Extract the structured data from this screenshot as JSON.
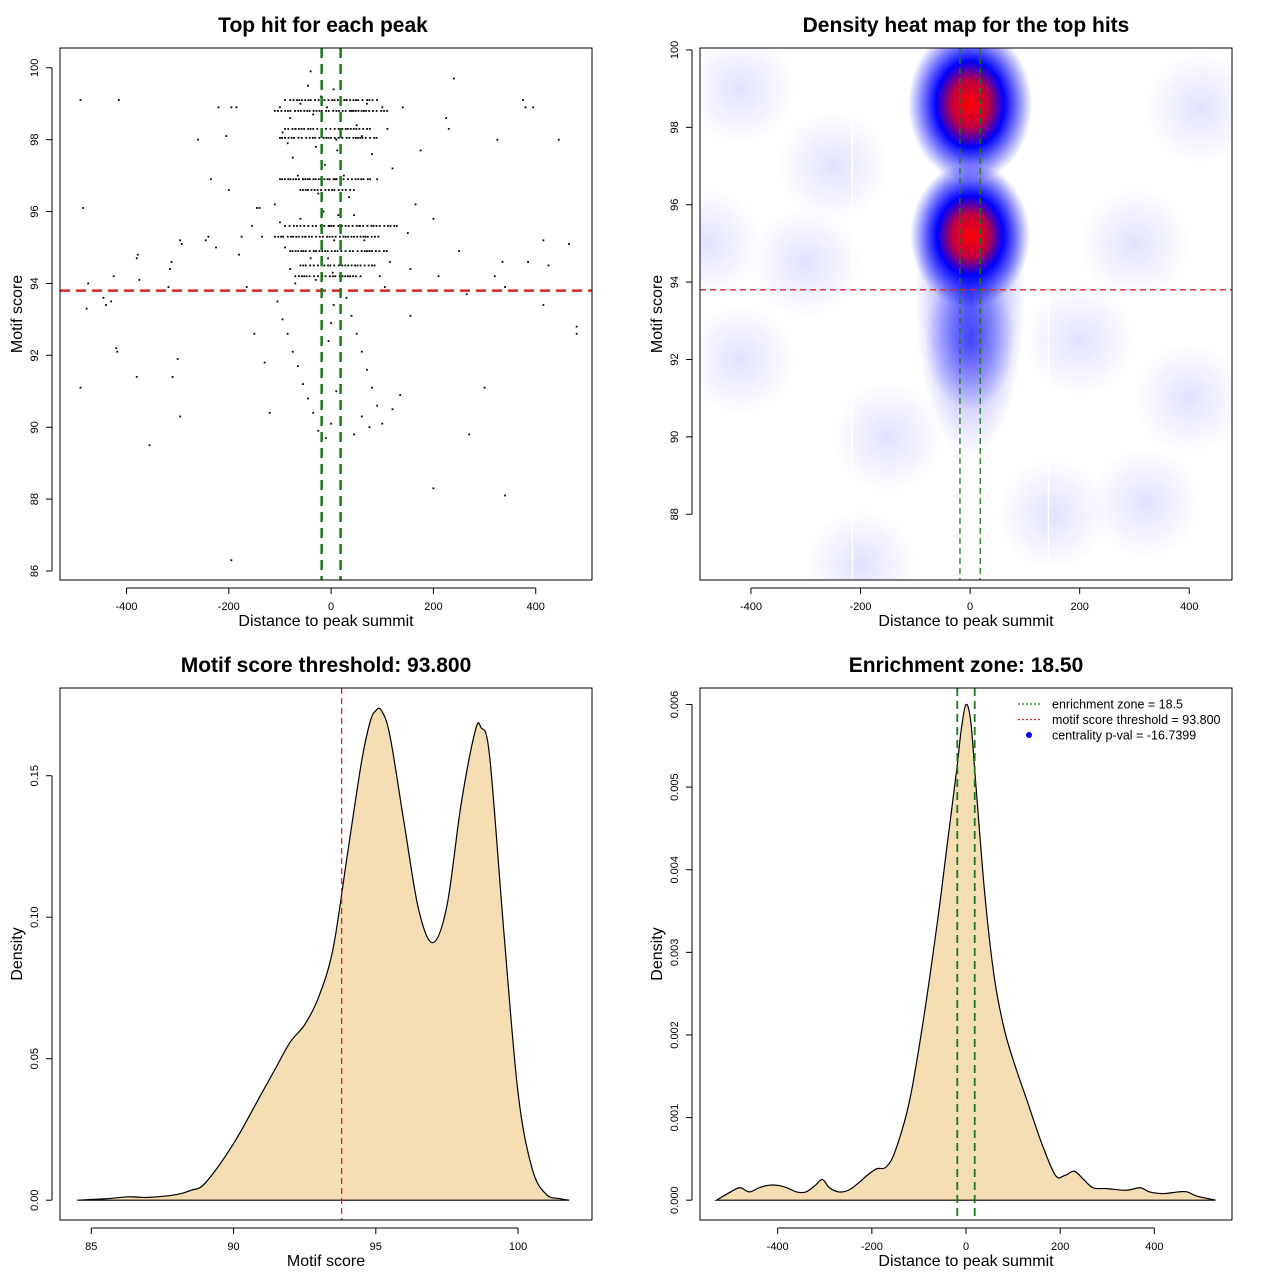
{
  "chart_data": [
    {
      "id": "top_hits",
      "type": "scatter",
      "title": "Top hit for each peak",
      "xlabel": "Distance to peak summit",
      "ylabel": "Motif score",
      "xlim": [
        -530,
        510
      ],
      "ylim": [
        85.75,
        100.55
      ],
      "xticks": [
        -400,
        -200,
        0,
        200,
        400
      ],
      "yticks": [
        86,
        88,
        90,
        92,
        94,
        96,
        98,
        100
      ],
      "hline": {
        "y": 93.8,
        "color": "#d62728",
        "label": "motif score threshold"
      },
      "vlines": [
        {
          "x": -18.5,
          "color": "#1a7a1a"
        },
        {
          "x": 18.5,
          "color": "#1a7a1a"
        }
      ],
      "points": [
        [
          -490,
          99.1
        ],
        [
          -415,
          99.1
        ],
        [
          -485,
          96.1
        ],
        [
          -475,
          94.0
        ],
        [
          -478,
          93.3
        ],
        [
          -465,
          93.8
        ],
        [
          -490,
          91.1
        ],
        [
          -445,
          93.6
        ],
        [
          -430,
          93.5
        ],
        [
          -425,
          94.2
        ],
        [
          -440,
          93.4
        ],
        [
          -420,
          92.2
        ],
        [
          -418,
          92.1
        ],
        [
          -380,
          94.7
        ],
        [
          -378,
          94.8
        ],
        [
          -375,
          94.1
        ],
        [
          -380,
          91.4
        ],
        [
          -355,
          89.5
        ],
        [
          -315,
          94.4
        ],
        [
          -312,
          94.6
        ],
        [
          -318,
          93.9
        ],
        [
          -310,
          91.4
        ],
        [
          -300,
          91.9
        ],
        [
          -295,
          90.3
        ],
        [
          -295,
          95.2
        ],
        [
          -292,
          95.1
        ],
        [
          -260,
          98.0
        ],
        [
          -245,
          95.2
        ],
        [
          -240,
          95.3
        ],
        [
          -235,
          96.9
        ],
        [
          -225,
          95.0
        ],
        [
          -220,
          98.9
        ],
        [
          -205,
          98.1
        ],
        [
          -200,
          96.6
        ],
        [
          -195,
          98.9
        ],
        [
          -185,
          98.9
        ],
        [
          -180,
          94.8
        ],
        [
          -175,
          95.3
        ],
        [
          -165,
          93.9
        ],
        [
          -155,
          95.6
        ],
        [
          -150,
          92.6
        ],
        [
          -145,
          96.1
        ],
        [
          -140,
          96.1
        ],
        [
          -135,
          95.3
        ],
        [
          -130,
          91.8
        ],
        [
          -120,
          90.4
        ],
        [
          -195,
          86.3
        ],
        [
          140,
          98.9
        ],
        [
          150,
          95.4
        ],
        [
          155,
          94.4
        ],
        [
          165,
          96.2
        ],
        [
          175,
          97.7
        ],
        [
          190,
          93.8
        ],
        [
          200,
          95.8
        ],
        [
          210,
          94.2
        ],
        [
          225,
          98.6
        ],
        [
          230,
          98.3
        ],
        [
          240,
          99.7
        ],
        [
          250,
          94.9
        ],
        [
          265,
          93.7
        ],
        [
          270,
          89.8
        ],
        [
          300,
          91.1
        ],
        [
          320,
          94.2
        ],
        [
          325,
          98.0
        ],
        [
          335,
          94.6
        ],
        [
          340,
          93.9
        ],
        [
          375,
          99.1
        ],
        [
          380,
          98.9
        ],
        [
          385,
          94.6
        ],
        [
          395,
          98.9
        ],
        [
          415,
          93.4
        ],
        [
          415,
          95.2
        ],
        [
          425,
          94.5
        ],
        [
          445,
          98.0
        ],
        [
          465,
          95.1
        ],
        [
          480,
          92.8
        ],
        [
          480,
          92.6
        ],
        [
          200,
          88.3
        ],
        [
          340,
          88.1
        ],
        [
          155,
          93.1
        ],
        [
          120,
          90.5
        ],
        [
          135,
          90.9
        ],
        [
          -100,
          98.9
        ],
        [
          -90,
          99.1
        ],
        [
          -80,
          98.6
        ],
        [
          -70,
          98.3
        ],
        [
          -60,
          99.0
        ],
        [
          -95,
          98.2
        ],
        [
          -85,
          97.9
        ],
        [
          -75,
          97.5
        ],
        [
          -65,
          97.0
        ],
        [
          -55,
          96.9
        ],
        [
          -45,
          99.5
        ],
        [
          -40,
          99.9
        ],
        [
          -35,
          98.7
        ],
        [
          -30,
          97.8
        ],
        [
          -25,
          96.5
        ],
        [
          -20,
          99.2
        ],
        [
          30,
          99.1
        ],
        [
          40,
          98.8
        ],
        [
          50,
          98.4
        ],
        [
          60,
          98.1
        ],
        [
          70,
          99.0
        ],
        [
          80,
          97.6
        ],
        [
          90,
          96.9
        ],
        [
          100,
          98.9
        ],
        [
          110,
          98.3
        ],
        [
          120,
          97.2
        ],
        [
          25,
          97.0
        ],
        [
          35,
          96.4
        ],
        [
          45,
          95.9
        ],
        [
          55,
          95.6
        ],
        [
          65,
          95.2
        ],
        [
          75,
          94.9
        ],
        [
          85,
          94.5
        ],
        [
          95,
          94.2
        ],
        [
          105,
          93.9
        ],
        [
          115,
          94.6
        ],
        [
          -110,
          96.2
        ],
        [
          -100,
          95.7
        ],
        [
          -90,
          95.0
        ],
        [
          -80,
          94.4
        ],
        [
          -70,
          94.0
        ],
        [
          -60,
          95.8
        ],
        [
          -50,
          95.3
        ],
        [
          -40,
          94.7
        ],
        [
          -30,
          94.1
        ],
        [
          -105,
          93.5
        ],
        [
          -95,
          93.0
        ],
        [
          -85,
          92.6
        ],
        [
          -75,
          92.1
        ],
        [
          -65,
          91.7
        ],
        [
          -55,
          91.2
        ],
        [
          -45,
          90.8
        ],
        [
          -35,
          90.4
        ],
        [
          -25,
          89.9
        ],
        [
          -5,
          92.4
        ],
        [
          0,
          92.9
        ],
        [
          5,
          93.4
        ],
        [
          10,
          91.0
        ],
        [
          0,
          90.1
        ],
        [
          -10,
          89.7
        ],
        [
          30,
          93.6
        ],
        [
          40,
          93.1
        ],
        [
          50,
          92.6
        ],
        [
          60,
          92.1
        ],
        [
          70,
          91.6
        ],
        [
          80,
          91.1
        ],
        [
          90,
          90.6
        ],
        [
          100,
          90.1
        ],
        [
          45,
          89.8
        ],
        [
          60,
          90.3
        ],
        [
          75,
          90.0
        ],
        [
          -8,
          98.9
        ],
        [
          5,
          99.4
        ],
        [
          10,
          98.0
        ],
        [
          -12,
          97.3
        ],
        [
          8,
          96.9
        ],
        [
          -3,
          95.6
        ],
        [
          6,
          95.2
        ],
        [
          -6,
          94.7
        ],
        [
          3,
          94.3
        ],
        [
          12,
          97.7
        ],
        [
          -15,
          96.0
        ],
        [
          14,
          95.9
        ]
      ],
      "dense_rows": [
        {
          "y": 99.1,
          "x_from": -80,
          "x_to": 90
        },
        {
          "y": 98.8,
          "x_from": -110,
          "x_to": 110
        },
        {
          "y": 98.3,
          "x_from": -90,
          "x_to": 80
        },
        {
          "y": 98.05,
          "x_from": -100,
          "x_to": 90
        },
        {
          "y": 96.9,
          "x_from": -100,
          "x_to": 80
        },
        {
          "y": 96.6,
          "x_from": -60,
          "x_to": 50
        },
        {
          "y": 95.6,
          "x_from": -90,
          "x_to": 130
        },
        {
          "y": 95.3,
          "x_from": -110,
          "x_to": 100
        },
        {
          "y": 94.9,
          "x_from": -80,
          "x_to": 110
        },
        {
          "y": 94.5,
          "x_from": -60,
          "x_to": 80
        },
        {
          "y": 94.2,
          "x_from": -70,
          "x_to": 60
        }
      ]
    },
    {
      "id": "heat_map",
      "type": "heatmap",
      "title": "Density heat map for the top hits",
      "xlabel": "Distance to peak summit",
      "ylabel": "Motif score",
      "xlim": [
        -493,
        478
      ],
      "ylim": [
        86.3,
        100.05
      ],
      "xticks": [
        -400,
        -200,
        0,
        200,
        400
      ],
      "yticks": [
        88,
        90,
        92,
        94,
        96,
        98,
        100
      ],
      "hline": {
        "y": 93.8,
        "color": "#d62728"
      },
      "vlines": [
        {
          "x": -18.5,
          "color": "#1a7a1a"
        },
        {
          "x": 18.5,
          "color": "#1a7a1a"
        }
      ],
      "color_scale": [
        "#ffffff",
        "#0000ff",
        "#ff0000"
      ],
      "hotspots": [
        {
          "x": 0,
          "y": 98.6,
          "weight": 1.0
        },
        {
          "x": 0,
          "y": 95.2,
          "weight": 0.9
        },
        {
          "x": 0,
          "y": 92.5,
          "weight": 0.45
        }
      ]
    },
    {
      "id": "score_density",
      "type": "area",
      "title": "Motif score threshold: 93.800",
      "xlabel": "Motif score",
      "ylabel": "Density",
      "xlim": [
        83.9,
        102.6
      ],
      "ylim": [
        -0.007,
        0.181
      ],
      "xticks": [
        85,
        90,
        95,
        100
      ],
      "yticks": [
        0.0,
        0.05,
        0.1,
        0.15
      ],
      "ytick_labels": [
        "0.00",
        "0.05",
        "0.10",
        "0.15"
      ],
      "vline": {
        "x": 93.8,
        "color": "#d62728"
      },
      "fill_color": "#f5deb3",
      "x": [
        84.5,
        85.5,
        86.3,
        87.0,
        88.0,
        88.5,
        89.0,
        90.0,
        91.0,
        91.5,
        92.0,
        92.5,
        93.0,
        93.5,
        94.0,
        94.5,
        94.8,
        95.0,
        95.2,
        95.5,
        96.0,
        96.5,
        97.0,
        97.5,
        98.0,
        98.5,
        98.7,
        99.0,
        99.5,
        100.0,
        100.5,
        101.0,
        101.5,
        101.8
      ],
      "y": [
        0.0,
        0.0005,
        0.0012,
        0.001,
        0.002,
        0.0035,
        0.006,
        0.02,
        0.038,
        0.047,
        0.056,
        0.062,
        0.072,
        0.089,
        0.122,
        0.155,
        0.169,
        0.173,
        0.173,
        0.164,
        0.133,
        0.103,
        0.091,
        0.104,
        0.14,
        0.166,
        0.167,
        0.157,
        0.095,
        0.038,
        0.011,
        0.002,
        0.0005,
        0.0
      ]
    },
    {
      "id": "distance_density",
      "type": "area",
      "title": "Enrichment zone: 18.50",
      "xlabel": "Distance to peak summit",
      "ylabel": "Density",
      "xlim": [
        -565,
        565
      ],
      "ylim": [
        -0.00024,
        0.0062
      ],
      "xticks": [
        -400,
        -200,
        0,
        200,
        400
      ],
      "yticks": [
        0.0,
        0.001,
        0.002,
        0.003,
        0.004,
        0.005,
        0.006
      ],
      "ytick_labels": [
        "0.000",
        "0.001",
        "0.002",
        "0.003",
        "0.004",
        "0.005",
        "0.006"
      ],
      "vlines": [
        {
          "x": -18.5,
          "color": "#1a7a1a"
        },
        {
          "x": 18.5,
          "color": "#1a7a1a"
        }
      ],
      "fill_color": "#f5deb3",
      "x": [
        -530,
        -500,
        -480,
        -460,
        -440,
        -420,
        -400,
        -380,
        -360,
        -340,
        -320,
        -305,
        -290,
        -270,
        -250,
        -230,
        -210,
        -190,
        -170,
        -150,
        -120,
        -90,
        -60,
        -40,
        -20,
        -10,
        0,
        10,
        20,
        40,
        60,
        80,
        100,
        130,
        160,
        190,
        210,
        230,
        250,
        270,
        300,
        340,
        370,
        390,
        420,
        450,
        470,
        490,
        530
      ],
      "y": [
        0.0,
        0.0001,
        0.00015,
        0.0001,
        0.00015,
        0.00018,
        0.00018,
        0.00015,
        0.0001,
        0.0001,
        0.00018,
        0.00025,
        0.00015,
        0.0001,
        0.00012,
        0.0002,
        0.0003,
        0.00038,
        0.0004,
        0.0006,
        0.0012,
        0.0022,
        0.0034,
        0.0043,
        0.0052,
        0.0057,
        0.006,
        0.0058,
        0.0051,
        0.0037,
        0.0027,
        0.0021,
        0.0017,
        0.0012,
        0.0007,
        0.0003,
        0.0003,
        0.00035,
        0.00025,
        0.00015,
        0.00014,
        0.00012,
        0.00015,
        0.0001,
        8e-05,
        0.0001,
        0.0001,
        5e-05,
        0.0
      ],
      "legend": [
        {
          "label": "enrichment zone = 18.5",
          "color": "#1a7a1a",
          "kind": "dotted-line"
        },
        {
          "label": "motif score threshold = 93.800",
          "color": "#d62728",
          "kind": "dotted-line"
        },
        {
          "label": "centrality p-val = -16.7399",
          "color": "#0000ff",
          "kind": "point"
        }
      ]
    }
  ]
}
